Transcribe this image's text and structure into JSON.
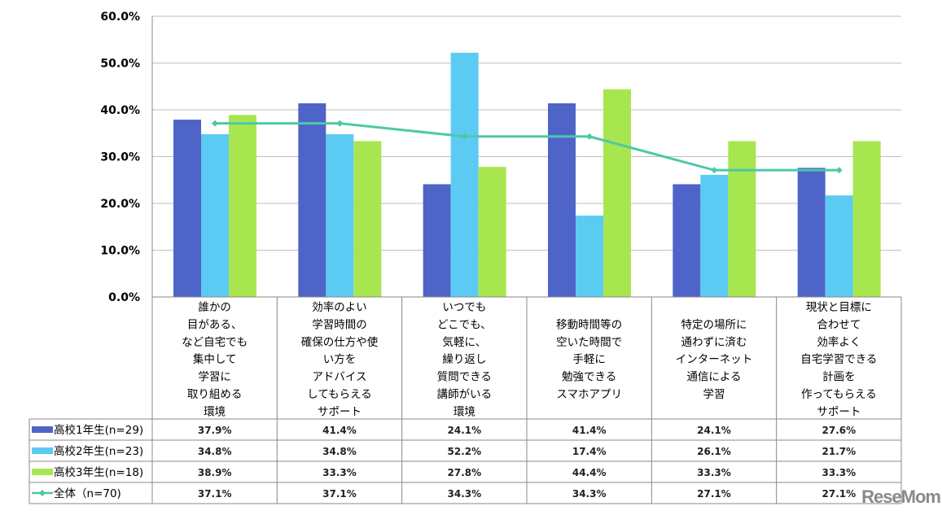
{
  "chart_data": {
    "type": "bar",
    "ylim": [
      0,
      60
    ],
    "yticks": [
      "0.0%",
      "10.0%",
      "20.0%",
      "30.0%",
      "40.0%",
      "50.0%",
      "60.0%"
    ],
    "grid": true,
    "legend_placement": "data-table-left",
    "categories": [
      [
        "誰かの",
        "目がある、",
        "など自宅でも",
        "集中して",
        "学習に",
        "取り組める",
        "環境"
      ],
      [
        "効率のよい",
        "学習時間の",
        "確保の仕方や使",
        "い方を",
        "アドバイス",
        "してもらえる",
        "サポート"
      ],
      [
        "いつでも",
        "どこでも、",
        "気軽に、",
        "繰り返し",
        "質問できる",
        "講師がいる",
        "環境"
      ],
      [
        "移動時間等の",
        "空いた時間で",
        "手軽に",
        "勉強できる",
        "スマホアプリ"
      ],
      [
        "特定の場所に",
        "通わずに済む",
        "インターネット",
        "通信による",
        "学習"
      ],
      [
        "現状と目標に",
        "合わせて",
        "効率よく",
        "自宅学習できる",
        "計画を",
        "作ってもらえる",
        "サポート"
      ]
    ],
    "series": [
      {
        "name": "高校1年生(n=29)",
        "type": "bar",
        "color": "#4F64C8",
        "values": [
          37.9,
          41.4,
          24.1,
          41.4,
          24.1,
          27.6
        ],
        "labels": [
          "37.9%",
          "41.4%",
          "24.1%",
          "41.4%",
          "24.1%",
          "27.6%"
        ]
      },
      {
        "name": "高校2年生(n=23)",
        "type": "bar",
        "color": "#5BCBF3",
        "values": [
          34.8,
          34.8,
          52.2,
          17.4,
          26.1,
          21.7
        ],
        "labels": [
          "34.8%",
          "34.8%",
          "52.2%",
          "17.4%",
          "26.1%",
          "21.7%"
        ]
      },
      {
        "name": "高校3年生(n=18)",
        "type": "bar",
        "color": "#A8E64F",
        "values": [
          38.9,
          33.3,
          27.8,
          44.4,
          33.3,
          33.3
        ],
        "labels": [
          "38.9%",
          "33.3%",
          "27.8%",
          "44.4%",
          "33.3%",
          "33.3%"
        ]
      },
      {
        "name": "全体（n=70)",
        "type": "line",
        "color": "#4DC8A6",
        "values": [
          37.1,
          37.1,
          34.3,
          34.3,
          27.1,
          27.1
        ],
        "labels": [
          "37.1%",
          "37.1%",
          "34.3%",
          "34.3%",
          "27.1%",
          "27.1%"
        ]
      }
    ]
  },
  "watermark": "ReseMom"
}
